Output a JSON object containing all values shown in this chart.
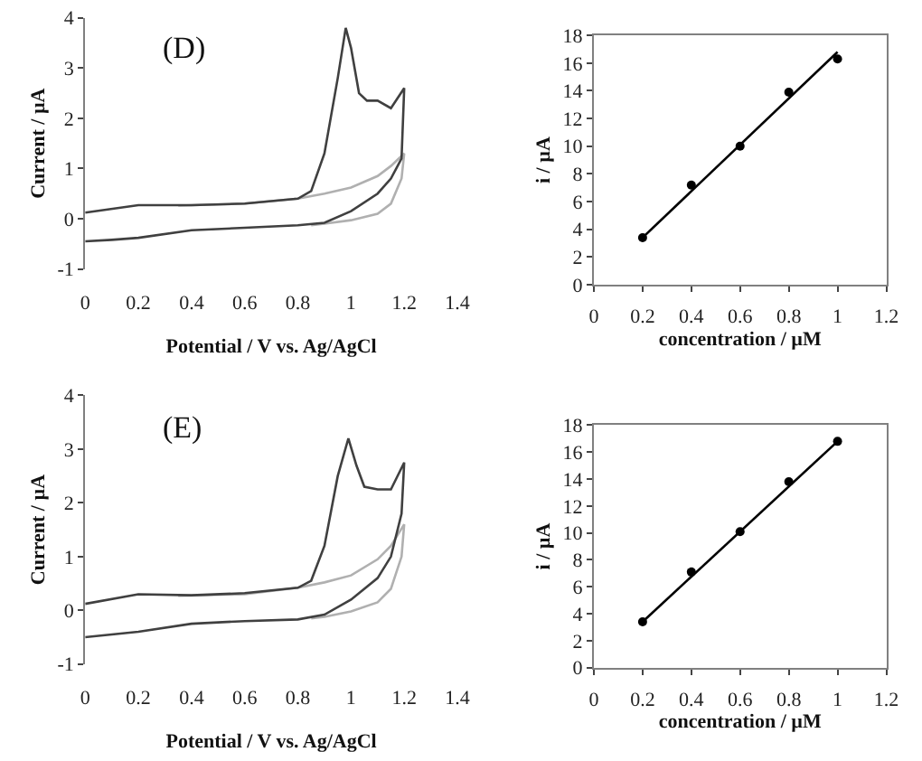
{
  "chart_data": [
    {
      "type": "line",
      "xlabel": "Potential / V vs. Ag/AgCl",
      "ylabel": "Current / µA",
      "annotations": [
        "(D)"
      ],
      "xlim": [
        0,
        1.4
      ],
      "ylim": [
        -1,
        4
      ],
      "xticks": [
        0,
        0.2,
        0.4,
        0.6,
        0.8,
        1,
        1.2,
        1.4
      ],
      "yticks": [
        -1,
        0,
        1,
        2,
        3,
        4
      ],
      "grid": false,
      "marker": "none",
      "line_style": "solid",
      "series": [
        {
          "color": "#b0b0b0",
          "x": [
            0.35,
            0.6,
            0.8,
            0.9,
            1.0,
            1.1,
            1.15,
            1.2,
            1.19,
            1.15,
            1.1,
            1.0,
            0.9,
            0.85
          ],
          "values": [
            0.26,
            0.3,
            0.4,
            0.5,
            0.62,
            0.85,
            1.05,
            1.3,
            0.8,
            0.3,
            0.1,
            -0.03,
            -0.1,
            -0.13
          ]
        },
        {
          "color": "#404040",
          "x": [
            0,
            0.2,
            0.4,
            0.6,
            0.8,
            0.85,
            0.9,
            0.95,
            0.98,
            1.0,
            1.03,
            1.06,
            1.1,
            1.15,
            1.2,
            1.19,
            1.15,
            1.1,
            1.0,
            0.9,
            0.8,
            0.6,
            0.4,
            0.2,
            0.1,
            0
          ],
          "values": [
            0.12,
            0.27,
            0.27,
            0.3,
            0.4,
            0.55,
            1.3,
            2.8,
            3.8,
            3.4,
            2.5,
            2.35,
            2.35,
            2.2,
            2.6,
            1.2,
            0.8,
            0.5,
            0.15,
            -0.08,
            -0.13,
            -0.18,
            -0.23,
            -0.38,
            -0.42,
            -0.45
          ]
        }
      ]
    },
    {
      "type": "scatter",
      "xlabel": "concentration / µM",
      "ylabel": "i / µA",
      "xlim": [
        0,
        1.2
      ],
      "ylim": [
        0,
        18
      ],
      "xticks": [
        0,
        0.2,
        0.4,
        0.6,
        0.8,
        1,
        1.2
      ],
      "yticks": [
        0,
        2,
        4,
        6,
        8,
        10,
        12,
        14,
        16,
        18
      ],
      "grid": false,
      "series": [
        {
          "type": "scatter",
          "marker": "circle",
          "color": "#000000",
          "x": [
            0.2,
            0.4,
            0.6,
            0.8,
            1
          ],
          "values": [
            3.4,
            7.2,
            10,
            13.9,
            16.3
          ]
        },
        {
          "type": "line",
          "marker": "none",
          "color": "#000000",
          "x": [
            0.2,
            1
          ],
          "values": [
            3.4,
            16.8
          ]
        }
      ]
    },
    {
      "type": "line",
      "xlabel": "Potential / V vs. Ag/AgCl",
      "ylabel": "Current / µA",
      "annotations": [
        "(E)"
      ],
      "xlim": [
        0,
        1.4
      ],
      "ylim": [
        -1,
        4
      ],
      "xticks": [
        0,
        0.2,
        0.4,
        0.6,
        0.8,
        1,
        1.2,
        1.4
      ],
      "yticks": [
        -1,
        0,
        1,
        2,
        3,
        4
      ],
      "grid": false,
      "marker": "none",
      "line_style": "solid",
      "series": [
        {
          "color": "#b0b0b0",
          "x": [
            0.35,
            0.6,
            0.8,
            0.9,
            1.0,
            1.1,
            1.15,
            1.2,
            1.19,
            1.15,
            1.1,
            1.0,
            0.9,
            0.85
          ],
          "values": [
            0.27,
            0.3,
            0.42,
            0.52,
            0.65,
            0.95,
            1.2,
            1.6,
            1.0,
            0.4,
            0.15,
            -0.02,
            -0.12,
            -0.15
          ]
        },
        {
          "color": "#404040",
          "x": [
            0,
            0.2,
            0.4,
            0.6,
            0.8,
            0.85,
            0.9,
            0.95,
            0.99,
            1.02,
            1.05,
            1.1,
            1.15,
            1.2,
            1.19,
            1.15,
            1.1,
            1.0,
            0.9,
            0.8,
            0.6,
            0.4,
            0.2,
            0
          ],
          "values": [
            0.12,
            0.3,
            0.28,
            0.32,
            0.42,
            0.55,
            1.2,
            2.5,
            3.2,
            2.7,
            2.3,
            2.25,
            2.25,
            2.75,
            1.8,
            1.0,
            0.6,
            0.2,
            -0.08,
            -0.17,
            -0.2,
            -0.25,
            -0.4,
            -0.5
          ]
        }
      ]
    },
    {
      "type": "scatter",
      "xlabel": "concentration / µM",
      "ylabel": "i / µA",
      "xlim": [
        0,
        1.2
      ],
      "ylim": [
        0,
        18
      ],
      "xticks": [
        0,
        0.2,
        0.4,
        0.6,
        0.8,
        1,
        1.2
      ],
      "yticks": [
        0,
        2,
        4,
        6,
        8,
        10,
        12,
        14,
        16,
        18
      ],
      "grid": false,
      "series": [
        {
          "type": "scatter",
          "marker": "circle",
          "color": "#000000",
          "x": [
            0.2,
            0.4,
            0.6,
            0.8,
            1
          ],
          "values": [
            3.4,
            7.1,
            10.1,
            13.8,
            16.8
          ]
        },
        {
          "type": "line",
          "marker": "none",
          "color": "#000000",
          "x": [
            0.2,
            1
          ],
          "values": [
            3.4,
            16.8
          ]
        }
      ]
    }
  ]
}
